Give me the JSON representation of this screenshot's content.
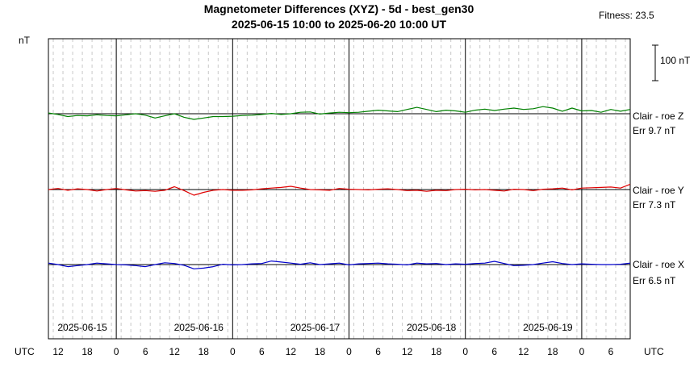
{
  "chart_data": {
    "type": "line",
    "title_line1": "Magnetometer Differences (XYZ) - 5d - best_gen30",
    "title_line2": "2025-06-15 10:00 to 2025-06-20 10:00 UT",
    "fitness_text": "Fitness: 23.5",
    "ylabel": "nT",
    "scale_bar_label": "100 nT",
    "scale_bar_nT": 100,
    "x_unit_label_left": "UTC",
    "x_unit_label_right": "UTC",
    "x_range_hours": [
      10,
      130
    ],
    "x_ticks": [
      {
        "h": 12,
        "label": "12"
      },
      {
        "h": 18,
        "label": "18"
      },
      {
        "h": 24,
        "label": "0"
      },
      {
        "h": 30,
        "label": "6"
      },
      {
        "h": 36,
        "label": "12"
      },
      {
        "h": 42,
        "label": "18"
      },
      {
        "h": 48,
        "label": "0"
      },
      {
        "h": 54,
        "label": "6"
      },
      {
        "h": 60,
        "label": "12"
      },
      {
        "h": 66,
        "label": "18"
      },
      {
        "h": 72,
        "label": "0"
      },
      {
        "h": 78,
        "label": "6"
      },
      {
        "h": 84,
        "label": "12"
      },
      {
        "h": 90,
        "label": "18"
      },
      {
        "h": 96,
        "label": "0"
      },
      {
        "h": 102,
        "label": "6"
      },
      {
        "h": 108,
        "label": "12"
      },
      {
        "h": 114,
        "label": "18"
      },
      {
        "h": 120,
        "label": "0"
      },
      {
        "h": 126,
        "label": "6"
      }
    ],
    "day_labels": [
      {
        "h": 17,
        "label": "2025-06-15"
      },
      {
        "h": 41,
        "label": "2025-06-16"
      },
      {
        "h": 65,
        "label": "2025-06-17"
      },
      {
        "h": 89,
        "label": "2025-06-18"
      },
      {
        "h": 113,
        "label": "2025-06-19"
      }
    ],
    "grid": true,
    "series": [
      {
        "name": "Clair - roe Z",
        "err_text": "Err 9.7 nT",
        "color": "#008000",
        "x": [
          10,
          12,
          14,
          16,
          18,
          20,
          22,
          24,
          26,
          28,
          30,
          32,
          34,
          36,
          38,
          40,
          42,
          44,
          46,
          48,
          50,
          52,
          54,
          56,
          58,
          60,
          62,
          64,
          66,
          68,
          70,
          72,
          74,
          76,
          78,
          80,
          82,
          84,
          86,
          88,
          90,
          92,
          94,
          96,
          98,
          100,
          102,
          104,
          106,
          108,
          110,
          112,
          114,
          116,
          118,
          120,
          122,
          124,
          126,
          128,
          130
        ],
        "values": [
          2,
          -2,
          -8,
          -5,
          -6,
          -3,
          -5,
          -6,
          -3,
          0,
          -4,
          -12,
          -6,
          0,
          -10,
          -16,
          -12,
          -8,
          -8,
          -7,
          -5,
          -4,
          -2,
          1,
          -2,
          0,
          4,
          5,
          -1,
          2,
          4,
          3,
          4,
          7,
          10,
          8,
          6,
          12,
          18,
          12,
          6,
          10,
          8,
          4,
          10,
          13,
          9,
          13,
          16,
          12,
          14,
          20,
          16,
          7,
          16,
          8,
          9,
          4,
          12,
          7,
          12
        ]
      },
      {
        "name": "Clair - roe Y",
        "err_text": "Err 7.3 nT",
        "color": "#e00000",
        "x": [
          10,
          12,
          14,
          16,
          18,
          20,
          22,
          24,
          26,
          28,
          30,
          32,
          34,
          36,
          38,
          40,
          42,
          44,
          46,
          48,
          50,
          52,
          54,
          56,
          58,
          60,
          62,
          64,
          66,
          68,
          70,
          72,
          74,
          76,
          78,
          80,
          82,
          84,
          86,
          88,
          90,
          92,
          94,
          96,
          98,
          100,
          102,
          104,
          106,
          108,
          110,
          112,
          114,
          116,
          118,
          120,
          122,
          124,
          126,
          128,
          130
        ],
        "values": [
          0,
          3,
          -2,
          2,
          0,
          -4,
          0,
          3,
          -1,
          -4,
          -3,
          -5,
          -2,
          8,
          -3,
          -16,
          -8,
          -2,
          0,
          -2,
          -2,
          -1,
          2,
          4,
          6,
          9,
          4,
          0,
          -1,
          -2,
          3,
          1,
          0,
          -1,
          1,
          2,
          0,
          -3,
          -2,
          -5,
          -2,
          -3,
          0,
          1,
          -1,
          0,
          -2,
          -4,
          1,
          0,
          -3,
          1,
          2,
          4,
          -1,
          4,
          5,
          6,
          7,
          4,
          15
        ]
      },
      {
        "name": "Clair - roe X",
        "err_text": "Err 6.5 nT",
        "color": "#0000cc",
        "x": [
          10,
          12,
          14,
          16,
          18,
          20,
          22,
          24,
          26,
          28,
          30,
          32,
          34,
          36,
          38,
          40,
          42,
          44,
          46,
          48,
          50,
          52,
          54,
          56,
          58,
          60,
          62,
          64,
          66,
          68,
          70,
          72,
          74,
          76,
          78,
          80,
          82,
          84,
          86,
          88,
          90,
          92,
          94,
          96,
          98,
          100,
          102,
          104,
          106,
          108,
          110,
          112,
          114,
          116,
          118,
          120,
          122,
          124,
          126,
          128,
          130
        ],
        "values": [
          4,
          0,
          -6,
          -3,
          0,
          4,
          2,
          0,
          -1,
          -3,
          -6,
          0,
          5,
          3,
          -2,
          -12,
          -10,
          -6,
          1,
          -1,
          0,
          2,
          3,
          10,
          7,
          4,
          1,
          5,
          0,
          2,
          4,
          -1,
          2,
          3,
          4,
          2,
          1,
          -1,
          4,
          2,
          3,
          0,
          2,
          1,
          3,
          4,
          9,
          3,
          -3,
          -2,
          0,
          4,
          8,
          3,
          0,
          2,
          1,
          0,
          0,
          1,
          4
        ]
      }
    ]
  }
}
